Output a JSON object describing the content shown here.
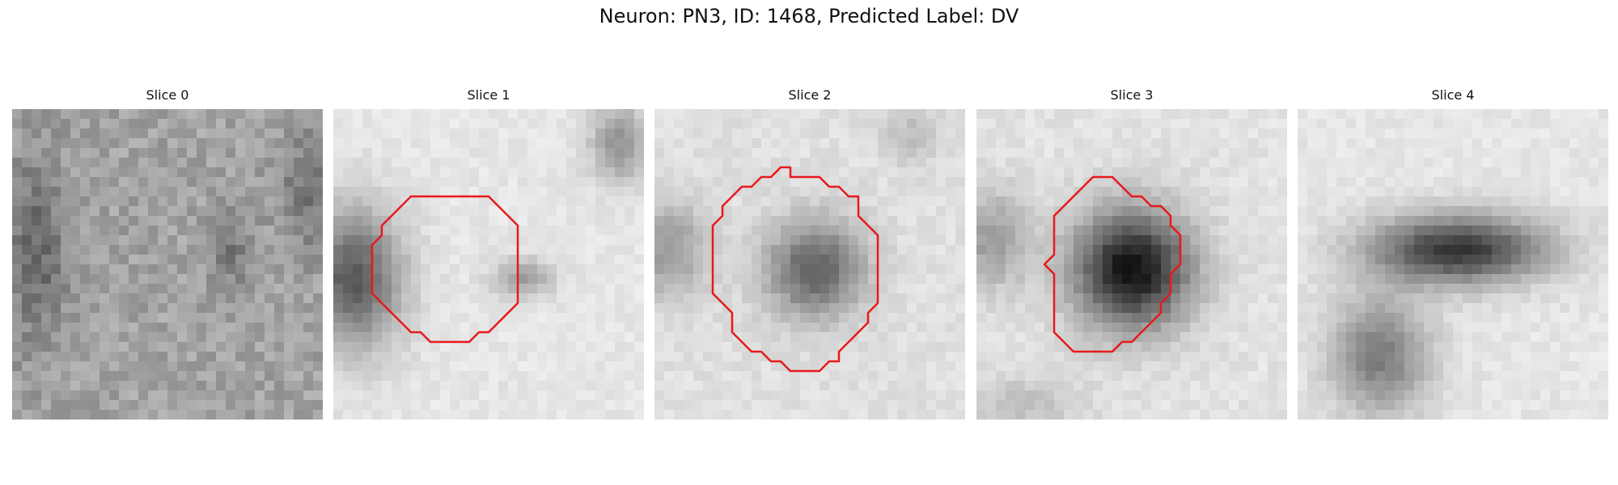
{
  "figure": {
    "title": "Neuron: PN3, ID: 1468, Predicted Label: DV"
  },
  "colors": {
    "contour": "#e8191b",
    "background": "#ffffff"
  },
  "slices": [
    {
      "title": "Slice 0"
    },
    {
      "title": "Slice 1"
    },
    {
      "title": "Slice 2"
    },
    {
      "title": "Slice 3"
    },
    {
      "title": "Slice 4"
    }
  ]
}
